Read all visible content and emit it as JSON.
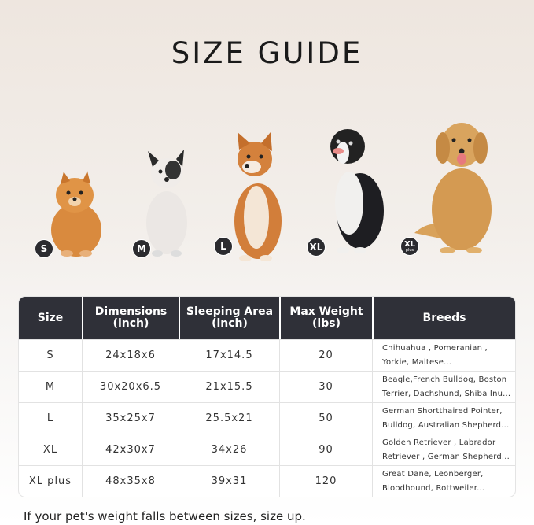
{
  "title": "SIZE GUIDE",
  "dogs": [
    {
      "badge": "S",
      "breed_pictured": "pomeranian"
    },
    {
      "badge": "M",
      "breed_pictured": "french-bulldog"
    },
    {
      "badge": "L",
      "breed_pictured": "shiba-inu"
    },
    {
      "badge": "XL",
      "breed_pictured": "border-collie"
    },
    {
      "badge": "XL",
      "badge_sub": "plus",
      "breed_pictured": "golden-retriever"
    }
  ],
  "table": {
    "headers": {
      "size": "Size",
      "dimensions": [
        "Dimensions",
        "(inch)"
      ],
      "sleeping": [
        "Sleeping Area",
        "(inch)"
      ],
      "weight": [
        "Max Weight",
        "(lbs)"
      ],
      "breeds": "Breeds"
    },
    "rows": [
      {
        "size": "S",
        "dimensions": "24x18x6",
        "sleeping": "17x14.5",
        "weight": "20",
        "breeds": [
          "Chihuahua , Pomeranian ,",
          "Yorkie, Maltese..."
        ]
      },
      {
        "size": "M",
        "dimensions": "30x20x6.5",
        "sleeping": "21x15.5",
        "weight": "30",
        "breeds": [
          "Beagle,French Bulldog, Boston",
          "Terrier, Dachshund, Shiba Inu..."
        ]
      },
      {
        "size": "L",
        "dimensions": "35x25x7",
        "sleeping": "25.5x21",
        "weight": "50",
        "breeds": [
          "German Shortthaired Pointer,",
          "Bulldog, Australian Shepherd..."
        ]
      },
      {
        "size": "XL",
        "dimensions": "42x30x7",
        "sleeping": "34x26",
        "weight": "90",
        "breeds": [
          "Golden Retriever , Labrador",
          "Retriever , German Shepherd..."
        ]
      },
      {
        "size": "XL plus",
        "dimensions": "48x35x8",
        "sleeping": "39x31",
        "weight": "120",
        "breeds": [
          "Great Dane, Leonberger,",
          "Bloodhound, Rottweiler..."
        ]
      }
    ]
  },
  "note": "If your pet's weight falls between sizes, size up.",
  "colors": {
    "header_bg": "#2f3038",
    "badge_bg": "#2b2b2f"
  }
}
